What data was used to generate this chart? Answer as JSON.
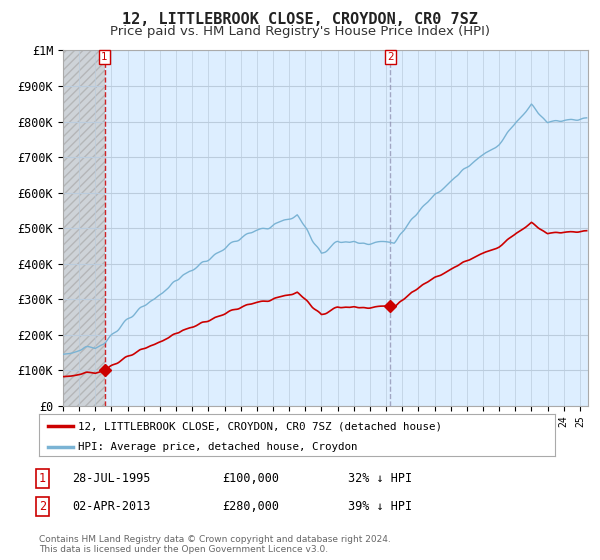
{
  "title": "12, LITTLEBROOK CLOSE, CROYDON, CR0 7SZ",
  "subtitle": "Price paid vs. HM Land Registry's House Price Index (HPI)",
  "ylim": [
    0,
    1000000
  ],
  "yticks": [
    0,
    100000,
    200000,
    300000,
    400000,
    500000,
    600000,
    700000,
    800000,
    900000,
    1000000
  ],
  "ytick_labels": [
    "£0",
    "£100K",
    "£200K",
    "£300K",
    "£400K",
    "£500K",
    "£600K",
    "£700K",
    "£800K",
    "£900K",
    "£1M"
  ],
  "hpi_color": "#7ab3d4",
  "price_color": "#cc0000",
  "vline1_color": "#cc0000",
  "vline2_color": "#8888aa",
  "sale1_date": 1995.57,
  "sale1_price": 100000,
  "sale2_date": 2013.25,
  "sale2_price": 280000,
  "legend_line1": "12, LITTLEBROOK CLOSE, CROYDON, CR0 7SZ (detached house)",
  "legend_line2": "HPI: Average price, detached house, Croydon",
  "table_row1": [
    "1",
    "28-JUL-1995",
    "£100,000",
    "32% ↓ HPI"
  ],
  "table_row2": [
    "2",
    "02-APR-2013",
    "£280,000",
    "39% ↓ HPI"
  ],
  "footer": "Contains HM Land Registry data © Crown copyright and database right 2024.\nThis data is licensed under the Open Government Licence v3.0.",
  "background_color": "#ffffff",
  "plot_bg_color": "#ddeeff",
  "grid_color": "#bbccdd",
  "hatch_bg_color": "#cccccc",
  "title_fontsize": 11,
  "subtitle_fontsize": 9.5,
  "axis_fontsize": 8.5
}
